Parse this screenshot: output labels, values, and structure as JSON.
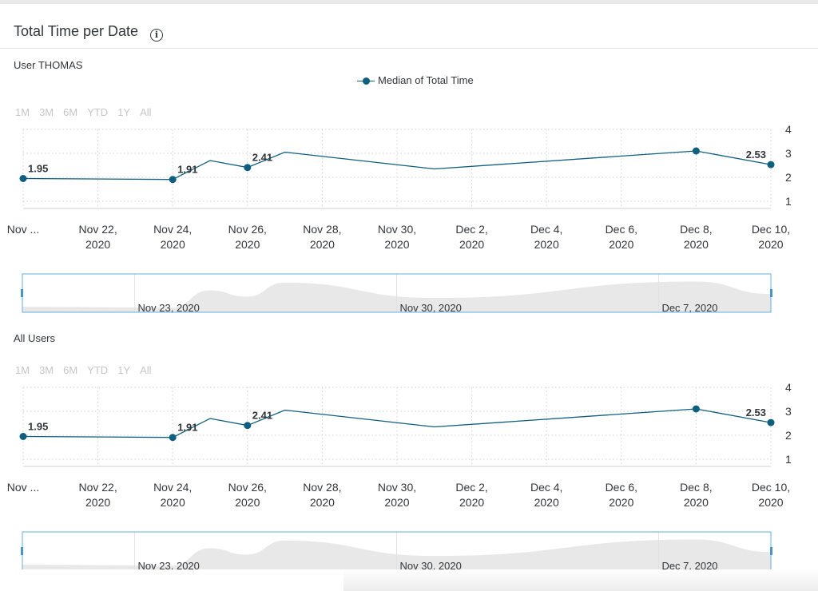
{
  "header": {
    "title": "Total Time per Date",
    "info_icon": "info-icon"
  },
  "zoom_options": [
    "1M",
    "3M",
    "6M",
    "YTD",
    "1Y",
    "All"
  ],
  "colors": {
    "series": "#0e5e7f",
    "navigator_fill": "#e8e8e8",
    "navigator_border": "#5fb1e0",
    "grid": "#d0d0d0"
  },
  "panels": [
    {
      "label": "User THOMAS",
      "legend": "Median of Total Time",
      "navigator_labels": [
        "Nov 23, 2020",
        "Nov 30, 2020",
        "Dec 7, 2020"
      ]
    },
    {
      "label": "All Users",
      "legend": "",
      "navigator_labels": [
        "Nov 23, 2020",
        "Nov 30, 2020",
        "Dec 7, 2020"
      ]
    }
  ],
  "chart_data": [
    {
      "type": "line",
      "series": [
        {
          "name": "Median of Total Time",
          "x": [
            "2020-11-20",
            "2020-11-24",
            "2020-11-25",
            "2020-11-26",
            "2020-11-27",
            "2020-12-01",
            "2020-12-08",
            "2020-12-10"
          ],
          "values": [
            1.95,
            1.91,
            2.7,
            2.41,
            3.05,
            2.35,
            3.1,
            2.53
          ],
          "markers": [
            true,
            true,
            false,
            true,
            false,
            false,
            true,
            true
          ],
          "labels": [
            "1.95",
            "1.91",
            "",
            "2.41",
            "",
            "",
            "",
            "2.53"
          ]
        }
      ],
      "x_ticks": [
        [
          "Nov ...",
          ""
        ],
        [
          "Nov 22,",
          "2020"
        ],
        [
          "Nov 24,",
          "2020"
        ],
        [
          "Nov 26,",
          "2020"
        ],
        [
          "Nov 28,",
          "2020"
        ],
        [
          "Nov 30,",
          "2020"
        ],
        [
          "Dec 2,",
          "2020"
        ],
        [
          "Dec 4,",
          "2020"
        ],
        [
          "Dec 6,",
          "2020"
        ],
        [
          "Dec 8,",
          "2020"
        ],
        [
          "Dec 10,",
          "2020"
        ]
      ],
      "y_ticks": [
        "1",
        "2",
        "3",
        "4"
      ],
      "ylim": [
        1,
        4
      ],
      "xlim": [
        "2020-11-20",
        "2020-12-10"
      ],
      "grid": true,
      "legend_position": "top-center"
    },
    {
      "type": "line",
      "series": [
        {
          "name": "Median of Total Time",
          "x": [
            "2020-11-20",
            "2020-11-24",
            "2020-11-25",
            "2020-11-26",
            "2020-11-27",
            "2020-12-01",
            "2020-12-08",
            "2020-12-10"
          ],
          "values": [
            1.95,
            1.91,
            2.7,
            2.41,
            3.05,
            2.35,
            3.1,
            2.53
          ],
          "markers": [
            true,
            true,
            false,
            true,
            false,
            false,
            true,
            true
          ],
          "labels": [
            "1.95",
            "1.91",
            "",
            "2.41",
            "",
            "",
            "",
            "2.53"
          ]
        }
      ],
      "x_ticks": [
        [
          "Nov ...",
          ""
        ],
        [
          "Nov 22,",
          "2020"
        ],
        [
          "Nov 24,",
          "2020"
        ],
        [
          "Nov 26,",
          "2020"
        ],
        [
          "Nov 28,",
          "2020"
        ],
        [
          "Nov 30,",
          "2020"
        ],
        [
          "Dec 2,",
          "2020"
        ],
        [
          "Dec 4,",
          "2020"
        ],
        [
          "Dec 6,",
          "2020"
        ],
        [
          "Dec 8,",
          "2020"
        ],
        [
          "Dec 10,",
          "2020"
        ]
      ],
      "y_ticks": [
        "1",
        "2",
        "3",
        "4"
      ],
      "ylim": [
        1,
        4
      ],
      "xlim": [
        "2020-11-20",
        "2020-12-10"
      ],
      "grid": true,
      "legend_position": "none"
    }
  ]
}
